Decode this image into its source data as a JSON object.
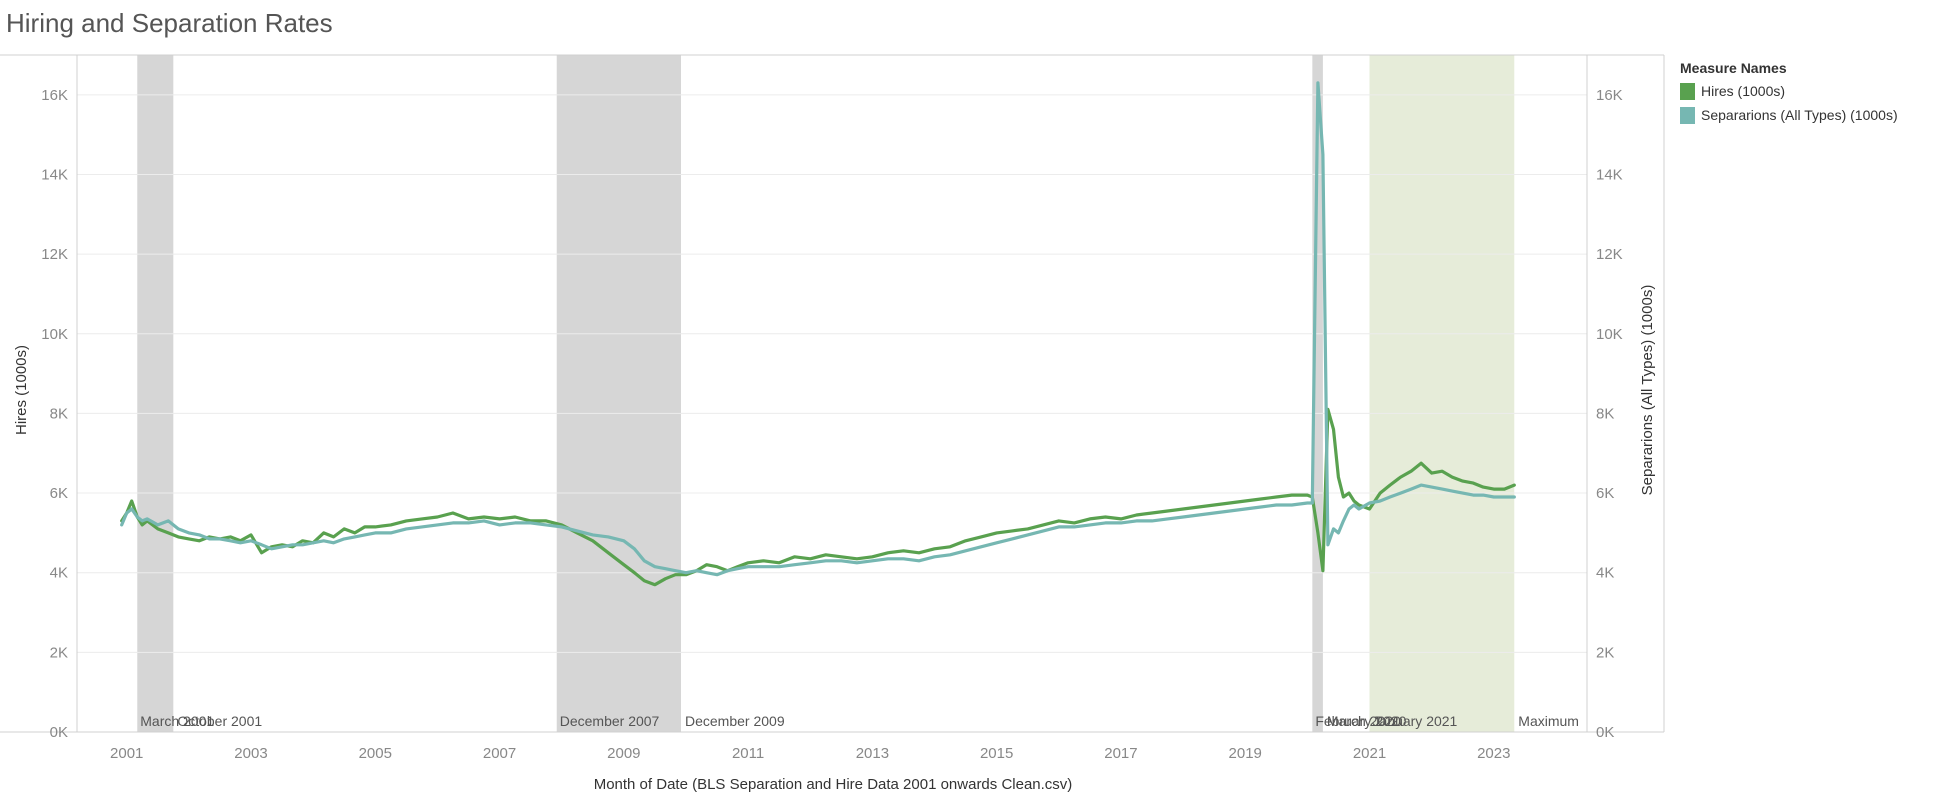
{
  "title": "Hiring and Separation Rates",
  "legend": {
    "title": "Measure Names",
    "items": [
      {
        "label": "Hires (1000s)",
        "color": "#59a14f"
      },
      {
        "label": "Separarions (All Types) (1000s)",
        "color": "#76b7b2"
      }
    ]
  },
  "chart_data": {
    "type": "line",
    "title": "Hiring and Separation Rates",
    "xlabel": "Month of Date (BLS Separation and Hire Data 2001 onwards Clean.csv)",
    "ylabel": "Hires (1000s)",
    "ylabel_right": "Separarions (All Types) (1000s)",
    "xlim": [
      2000.2,
      2024.5
    ],
    "ylim": [
      0,
      17000
    ],
    "x_ticks": [
      2001,
      2003,
      2005,
      2007,
      2009,
      2011,
      2013,
      2015,
      2017,
      2019,
      2021,
      2023
    ],
    "x_tick_labels": [
      "2001",
      "2003",
      "2005",
      "2007",
      "2009",
      "2011",
      "2013",
      "2015",
      "2017",
      "2019",
      "2021",
      "2023"
    ],
    "y_ticks": [
      0,
      2000,
      4000,
      6000,
      8000,
      10000,
      12000,
      14000,
      16000
    ],
    "y_tick_labels": [
      "0K",
      "2K",
      "4K",
      "6K",
      "8K",
      "10K",
      "12K",
      "14K",
      "16K"
    ],
    "grid": true,
    "legend_position": "right",
    "bands": [
      {
        "start": 2001.17,
        "end": 2001.75,
        "label": "March 2001",
        "end_label": "October 2001",
        "color": "#d6d6d6"
      },
      {
        "start": 2007.92,
        "end": 2009.92,
        "label": "December 2007",
        "end_label": "December 2009",
        "color": "#d6d6d6"
      },
      {
        "start": 2020.08,
        "end": 2020.25,
        "label": "February 2020",
        "end_label": "March 2020",
        "color": "#d6d6d6"
      },
      {
        "start": 2021.0,
        "end": 2023.33,
        "label": "January 2021",
        "end_label": "Maximum",
        "color": "#e6ecd9"
      }
    ],
    "series": [
      {
        "name": "Hires (1000s)",
        "color": "#59a14f",
        "x": [
          2000.92,
          2001.0,
          2001.08,
          2001.17,
          2001.25,
          2001.33,
          2001.5,
          2001.67,
          2001.83,
          2002.0,
          2002.17,
          2002.33,
          2002.5,
          2002.67,
          2002.83,
          2003.0,
          2003.17,
          2003.33,
          2003.5,
          2003.67,
          2003.83,
          2004.0,
          2004.17,
          2004.33,
          2004.5,
          2004.67,
          2004.83,
          2005.0,
          2005.25,
          2005.5,
          2005.75,
          2006.0,
          2006.25,
          2006.5,
          2006.75,
          2007.0,
          2007.25,
          2007.5,
          2007.75,
          2008.0,
          2008.25,
          2008.5,
          2008.75,
          2009.0,
          2009.17,
          2009.33,
          2009.5,
          2009.67,
          2009.83,
          2010.0,
          2010.17,
          2010.33,
          2010.5,
          2010.67,
          2010.83,
          2011.0,
          2011.25,
          2011.5,
          2011.75,
          2012.0,
          2012.25,
          2012.5,
          2012.75,
          2013.0,
          2013.25,
          2013.5,
          2013.75,
          2014.0,
          2014.25,
          2014.5,
          2014.75,
          2015.0,
          2015.25,
          2015.5,
          2015.75,
          2016.0,
          2016.25,
          2016.5,
          2016.75,
          2017.0,
          2017.25,
          2017.5,
          2017.75,
          2018.0,
          2018.25,
          2018.5,
          2018.75,
          2019.0,
          2019.25,
          2019.5,
          2019.75,
          2020.0,
          2020.08,
          2020.17,
          2020.25,
          2020.33,
          2020.42,
          2020.5,
          2020.58,
          2020.67,
          2020.75,
          2020.83,
          2021.0,
          2021.17,
          2021.33,
          2021.5,
          2021.67,
          2021.83,
          2022.0,
          2022.17,
          2022.33,
          2022.5,
          2022.67,
          2022.83,
          2023.0,
          2023.17,
          2023.33
        ],
        "values": [
          5300,
          5500,
          5800,
          5400,
          5200,
          5300,
          5100,
          5000,
          4900,
          4850,
          4800,
          4900,
          4850,
          4900,
          4800,
          4950,
          4500,
          4650,
          4700,
          4650,
          4800,
          4750,
          5000,
          4900,
          5100,
          5000,
          5150,
          5150,
          5200,
          5300,
          5350,
          5400,
          5500,
          5350,
          5400,
          5350,
          5400,
          5300,
          5300,
          5200,
          5000,
          4800,
          4500,
          4200,
          4000,
          3800,
          3700,
          3850,
          3950,
          3950,
          4050,
          4200,
          4150,
          4050,
          4150,
          4250,
          4300,
          4250,
          4400,
          4350,
          4450,
          4400,
          4350,
          4400,
          4500,
          4550,
          4500,
          4600,
          4650,
          4800,
          4900,
          5000,
          5050,
          5100,
          5200,
          5300,
          5250,
          5350,
          5400,
          5350,
          5450,
          5500,
          5550,
          5600,
          5650,
          5700,
          5750,
          5800,
          5850,
          5900,
          5950,
          5950,
          5900,
          5000,
          4050,
          8100,
          7600,
          6400,
          5900,
          6000,
          5800,
          5700,
          5600,
          6000,
          6200,
          6400,
          6550,
          6750,
          6500,
          6550,
          6400,
          6300,
          6250,
          6150,
          6100,
          6100,
          6200
        ]
      },
      {
        "name": "Separarions (All Types) (1000s)",
        "color": "#76b7b2",
        "x": [
          2000.92,
          2001.0,
          2001.08,
          2001.17,
          2001.25,
          2001.33,
          2001.5,
          2001.67,
          2001.83,
          2002.0,
          2002.17,
          2002.33,
          2002.5,
          2002.67,
          2002.83,
          2003.0,
          2003.17,
          2003.33,
          2003.5,
          2003.67,
          2003.83,
          2004.0,
          2004.17,
          2004.33,
          2004.5,
          2004.67,
          2004.83,
          2005.0,
          2005.25,
          2005.5,
          2005.75,
          2006.0,
          2006.25,
          2006.5,
          2006.75,
          2007.0,
          2007.25,
          2007.5,
          2007.75,
          2008.0,
          2008.25,
          2008.5,
          2008.75,
          2009.0,
          2009.17,
          2009.33,
          2009.5,
          2009.67,
          2009.83,
          2010.0,
          2010.17,
          2010.33,
          2010.5,
          2010.67,
          2010.83,
          2011.0,
          2011.25,
          2011.5,
          2011.75,
          2012.0,
          2012.25,
          2012.5,
          2012.75,
          2013.0,
          2013.25,
          2013.5,
          2013.75,
          2014.0,
          2014.25,
          2014.5,
          2014.75,
          2015.0,
          2015.25,
          2015.5,
          2015.75,
          2016.0,
          2016.25,
          2016.5,
          2016.75,
          2017.0,
          2017.25,
          2017.5,
          2017.75,
          2018.0,
          2018.25,
          2018.5,
          2018.75,
          2019.0,
          2019.25,
          2019.5,
          2019.75,
          2020.0,
          2020.08,
          2020.17,
          2020.25,
          2020.33,
          2020.42,
          2020.5,
          2020.58,
          2020.67,
          2020.75,
          2020.83,
          2021.0,
          2021.17,
          2021.33,
          2021.5,
          2021.67,
          2021.83,
          2022.0,
          2022.17,
          2022.33,
          2022.5,
          2022.67,
          2022.83,
          2023.0,
          2023.17,
          2023.33
        ],
        "values": [
          5200,
          5500,
          5600,
          5400,
          5300,
          5350,
          5200,
          5300,
          5100,
          5000,
          4950,
          4850,
          4850,
          4800,
          4750,
          4800,
          4700,
          4600,
          4650,
          4700,
          4700,
          4750,
          4800,
          4750,
          4850,
          4900,
          4950,
          5000,
          5000,
          5100,
          5150,
          5200,
          5250,
          5250,
          5300,
          5200,
          5250,
          5250,
          5200,
          5150,
          5050,
          4950,
          4900,
          4800,
          4600,
          4300,
          4150,
          4100,
          4050,
          4000,
          4050,
          4000,
          3950,
          4050,
          4100,
          4150,
          4150,
          4150,
          4200,
          4250,
          4300,
          4300,
          4250,
          4300,
          4350,
          4350,
          4300,
          4400,
          4450,
          4550,
          4650,
          4750,
          4850,
          4950,
          5050,
          5150,
          5150,
          5200,
          5250,
          5250,
          5300,
          5300,
          5350,
          5400,
          5450,
          5500,
          5550,
          5600,
          5650,
          5700,
          5700,
          5750,
          5750,
          16300,
          14500,
          4700,
          5100,
          5000,
          5300,
          5600,
          5700,
          5600,
          5750,
          5800,
          5900,
          6000,
          6100,
          6200,
          6150,
          6100,
          6050,
          6000,
          5950,
          5950,
          5900,
          5900,
          5900
        ]
      }
    ]
  }
}
